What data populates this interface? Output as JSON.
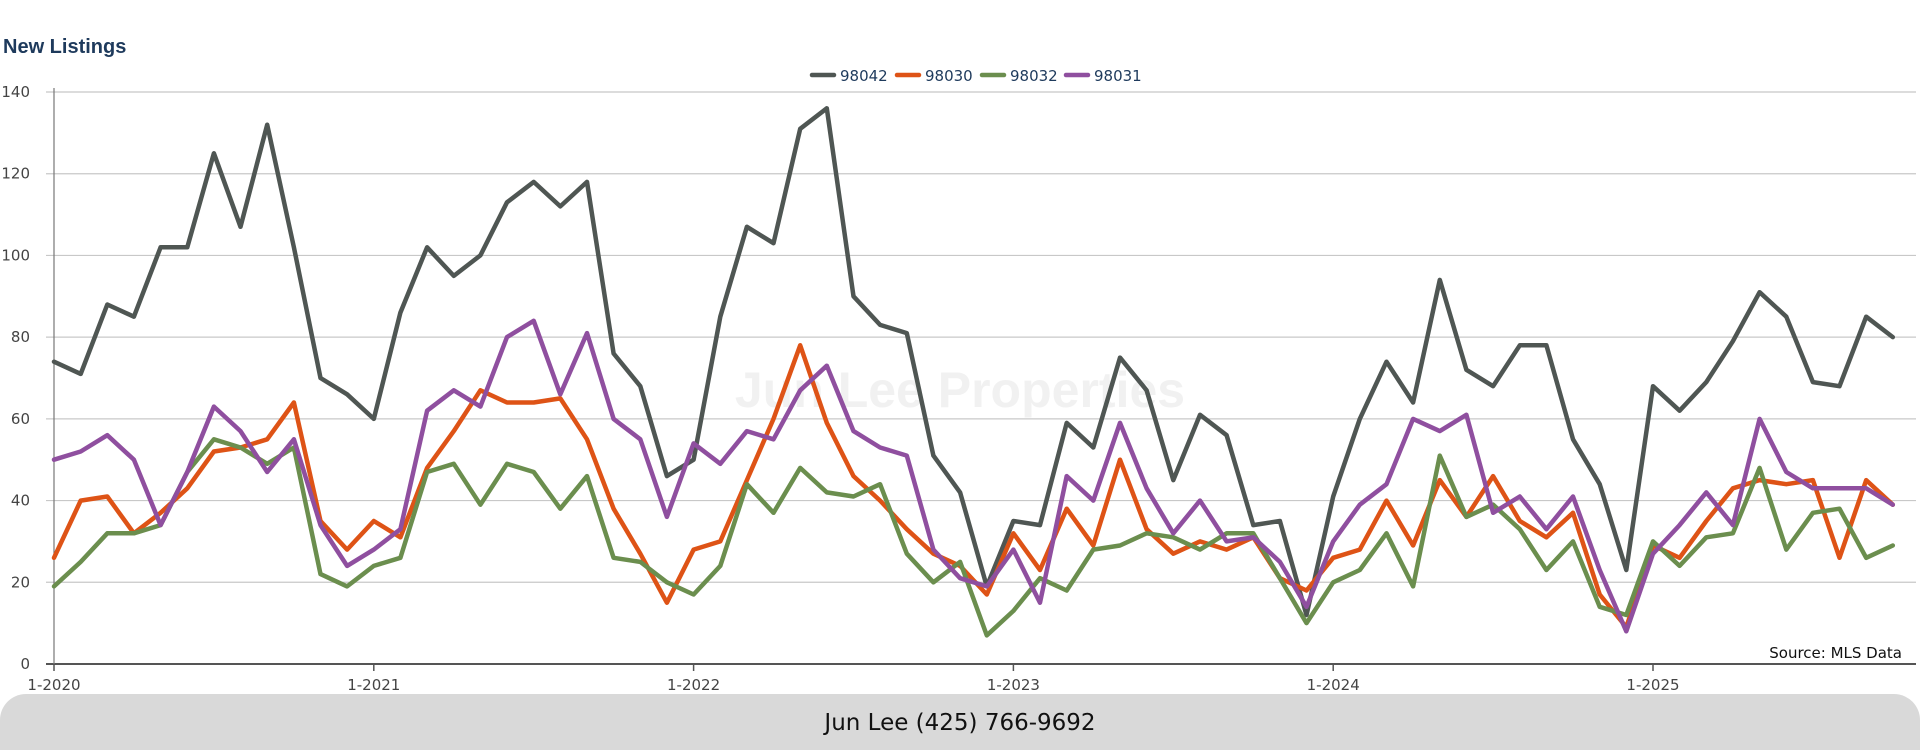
{
  "chart_data": {
    "type": "line",
    "title": "New Listings",
    "xlabel": "",
    "ylabel": "",
    "ylim": [
      0,
      140
    ],
    "y_ticks": [
      0,
      20,
      40,
      60,
      80,
      100,
      120,
      140
    ],
    "x_tick_labels": [
      "1-2020",
      "1-2021",
      "1-2022",
      "1-2023",
      "1-2024",
      "1-2025"
    ],
    "x": [
      "1-2020",
      "2-2020",
      "3-2020",
      "4-2020",
      "5-2020",
      "6-2020",
      "7-2020",
      "8-2020",
      "9-2020",
      "10-2020",
      "11-2020",
      "12-2020",
      "1-2021",
      "2-2021",
      "3-2021",
      "4-2021",
      "5-2021",
      "6-2021",
      "7-2021",
      "8-2021",
      "9-2021",
      "10-2021",
      "11-2021",
      "12-2021",
      "1-2022",
      "2-2022",
      "3-2022",
      "4-2022",
      "5-2022",
      "6-2022",
      "7-2022",
      "8-2022",
      "9-2022",
      "10-2022",
      "11-2022",
      "12-2022",
      "1-2023",
      "2-2023",
      "3-2023",
      "4-2023",
      "5-2023",
      "6-2023",
      "7-2023",
      "8-2023",
      "9-2023",
      "10-2023",
      "11-2023",
      "12-2023",
      "1-2024",
      "2-2024",
      "3-2024",
      "4-2024",
      "5-2024",
      "6-2024",
      "7-2024",
      "8-2024",
      "9-2024",
      "10-2024",
      "11-2024",
      "12-2024",
      "1-2025",
      "2-2025",
      "3-2025",
      "4-2025",
      "5-2025",
      "6-2025",
      "7-2025",
      "8-2025",
      "9-2025",
      "10-2025"
    ],
    "grid": true,
    "legend_position": "top-center",
    "series": [
      {
        "name": "98042",
        "color": "#4f5653",
        "values": [
          74,
          71,
          88,
          85,
          102,
          102,
          125,
          107,
          132,
          102,
          70,
          66,
          60,
          86,
          102,
          95,
          100,
          113,
          118,
          112,
          118,
          76,
          68,
          46,
          50,
          85,
          107,
          103,
          131,
          136,
          90,
          83,
          81,
          51,
          42,
          19,
          35,
          34,
          59,
          53,
          75,
          67,
          45,
          61,
          56,
          34,
          35,
          12,
          41,
          60,
          74,
          64,
          94,
          72,
          68,
          78,
          78,
          55,
          44,
          23,
          68,
          62,
          69,
          79,
          91,
          85,
          69,
          68,
          85,
          80
        ]
      },
      {
        "name": "98030",
        "color": "#de5316",
        "values": [
          26,
          40,
          41,
          32,
          37,
          43,
          52,
          53,
          55,
          64,
          35,
          28,
          35,
          31,
          48,
          57,
          67,
          64,
          64,
          65,
          55,
          38,
          27,
          15,
          28,
          30,
          45,
          60,
          78,
          59,
          46,
          40,
          33,
          27,
          24,
          17,
          32,
          23,
          38,
          29,
          50,
          33,
          27,
          30,
          28,
          31,
          21,
          18,
          26,
          28,
          40,
          29,
          45,
          36,
          46,
          35,
          31,
          37,
          17,
          9,
          29,
          26,
          35,
          43,
          45,
          44,
          45,
          26,
          45,
          39
        ]
      },
      {
        "name": "98032",
        "color": "#6b8e4e",
        "values": [
          19,
          25,
          32,
          32,
          34,
          47,
          55,
          53,
          49,
          53,
          22,
          19,
          24,
          26,
          47,
          49,
          39,
          49,
          47,
          38,
          46,
          26,
          25,
          20,
          17,
          24,
          44,
          37,
          48,
          42,
          41,
          44,
          27,
          20,
          25,
          7,
          13,
          21,
          18,
          28,
          29,
          32,
          31,
          28,
          32,
          32,
          21,
          10,
          20,
          23,
          32,
          19,
          51,
          36,
          39,
          33,
          23,
          30,
          14,
          12,
          30,
          24,
          31,
          32,
          48,
          28,
          37,
          38,
          26,
          29
        ]
      },
      {
        "name": "98031",
        "color": "#8f4f9f",
        "values": [
          50,
          52,
          56,
          50,
          34,
          47,
          63,
          57,
          47,
          55,
          34,
          24,
          28,
          33,
          62,
          67,
          63,
          80,
          84,
          66,
          81,
          60,
          55,
          36,
          54,
          49,
          57,
          55,
          67,
          73,
          57,
          53,
          51,
          28,
          21,
          19,
          28,
          15,
          46,
          40,
          59,
          43,
          32,
          40,
          30,
          31,
          25,
          14,
          30,
          39,
          44,
          60,
          57,
          61,
          37,
          41,
          33,
          41,
          23,
          8,
          27,
          34,
          42,
          34,
          60,
          47,
          43,
          43,
          43,
          39
        ]
      }
    ],
    "annotation": "Source: MLS Data"
  },
  "footer": {
    "text": "Jun Lee (425) 766-9692"
  },
  "watermark": "Jun Lee Properties",
  "colors": {
    "title": "#1e3a5c",
    "grid": "#c8c8c8",
    "axis": "#555555",
    "footer_bg": "#d9d9d9"
  }
}
